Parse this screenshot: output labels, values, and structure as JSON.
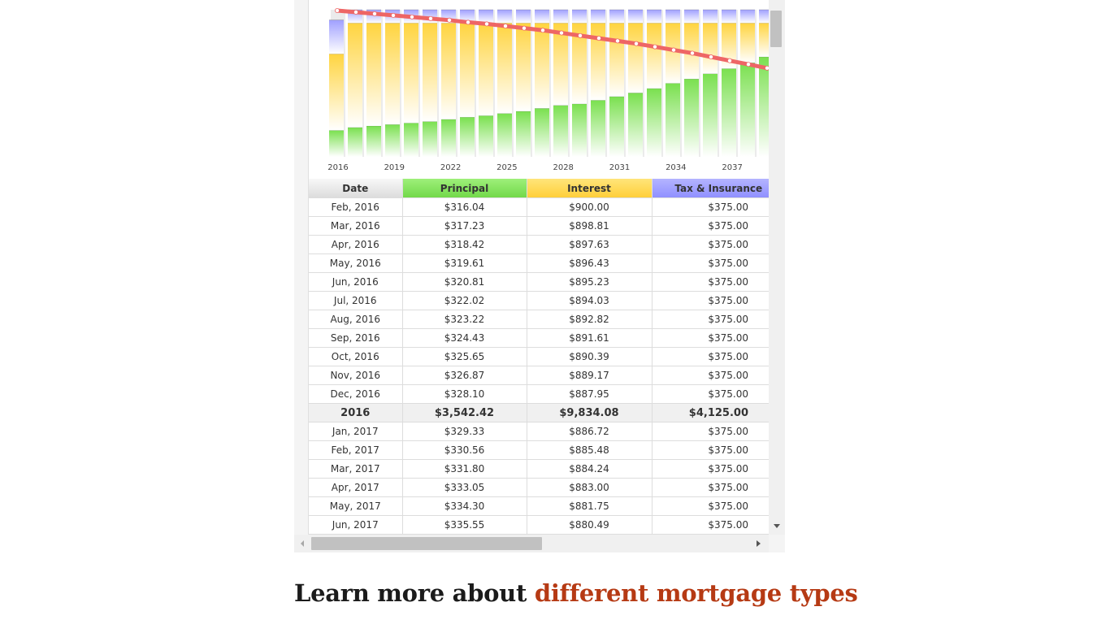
{
  "chart_data": {
    "type": "bar",
    "stacked": true,
    "x_tick_labels": [
      "2016",
      "2019",
      "2022",
      "2025",
      "2028",
      "2031",
      "2034",
      "2037"
    ],
    "series": [
      {
        "values": [
          0.18,
          0.2,
          0.21,
          0.22,
          0.23,
          0.24,
          0.255,
          0.27,
          0.28,
          0.295,
          0.31,
          0.33,
          0.35,
          0.36,
          0.385,
          0.41,
          0.435,
          0.465,
          0.5,
          0.53,
          0.565,
          0.6,
          0.64,
          0.68
        ]
      },
      {
        "values": [
          0.52,
          0.71,
          0.7,
          0.69,
          0.68,
          0.67,
          0.655,
          0.64,
          0.63,
          0.615,
          0.6,
          0.58,
          0.56,
          0.55,
          0.525,
          0.5,
          0.475,
          0.445,
          0.41,
          0.38,
          0.345,
          0.31,
          0.27,
          0.23
        ]
      },
      {
        "values": [
          0.23,
          0.24,
          0.24,
          0.24,
          0.24,
          0.24,
          0.24,
          0.24,
          0.24,
          0.24,
          0.24,
          0.24,
          0.24,
          0.24,
          0.24,
          0.24,
          0.24,
          0.24,
          0.24,
          0.24,
          0.24,
          0.24,
          0.24,
          0.24
        ]
      },
      {
        "type": "line",
        "values": [
          1.0,
          0.985,
          0.97,
          0.955,
          0.94,
          0.925,
          0.91,
          0.89,
          0.875,
          0.855,
          0.835,
          0.815,
          0.79,
          0.765,
          0.74,
          0.715,
          0.69,
          0.66,
          0.63,
          0.6,
          0.565,
          0.53,
          0.495,
          0.46
        ]
      }
    ],
    "colors": {
      "principal": "#7ae04f",
      "interest": "#ffd43f",
      "tax": "#a0a0ff",
      "balance": "#ee6666"
    },
    "legend": "none",
    "grid": false
  },
  "table": {
    "headers": {
      "date": "Date",
      "principal": "Principal",
      "interest": "Interest",
      "tax": "Tax & Insurance"
    },
    "rows": [
      {
        "date": "Feb, 2016",
        "principal": "$316.04",
        "interest": "$900.00",
        "tax": "$375.00"
      },
      {
        "date": "Mar, 2016",
        "principal": "$317.23",
        "interest": "$898.81",
        "tax": "$375.00"
      },
      {
        "date": "Apr, 2016",
        "principal": "$318.42",
        "interest": "$897.63",
        "tax": "$375.00"
      },
      {
        "date": "May, 2016",
        "principal": "$319.61",
        "interest": "$896.43",
        "tax": "$375.00"
      },
      {
        "date": "Jun, 2016",
        "principal": "$320.81",
        "interest": "$895.23",
        "tax": "$375.00"
      },
      {
        "date": "Jul, 2016",
        "principal": "$322.02",
        "interest": "$894.03",
        "tax": "$375.00"
      },
      {
        "date": "Aug, 2016",
        "principal": "$323.22",
        "interest": "$892.82",
        "tax": "$375.00"
      },
      {
        "date": "Sep, 2016",
        "principal": "$324.43",
        "interest": "$891.61",
        "tax": "$375.00"
      },
      {
        "date": "Oct, 2016",
        "principal": "$325.65",
        "interest": "$890.39",
        "tax": "$375.00"
      },
      {
        "date": "Nov, 2016",
        "principal": "$326.87",
        "interest": "$889.17",
        "tax": "$375.00"
      },
      {
        "date": "Dec, 2016",
        "principal": "$328.10",
        "interest": "$887.95",
        "tax": "$375.00"
      },
      {
        "date": "2016",
        "principal": "$3,542.42",
        "interest": "$9,834.08",
        "tax": "$4,125.00",
        "summary": true
      },
      {
        "date": "Jan, 2017",
        "principal": "$329.33",
        "interest": "$886.72",
        "tax": "$375.00"
      },
      {
        "date": "Feb, 2017",
        "principal": "$330.56",
        "interest": "$885.48",
        "tax": "$375.00"
      },
      {
        "date": "Mar, 2017",
        "principal": "$331.80",
        "interest": "$884.24",
        "tax": "$375.00"
      },
      {
        "date": "Apr, 2017",
        "principal": "$333.05",
        "interest": "$883.00",
        "tax": "$375.00"
      },
      {
        "date": "May, 2017",
        "principal": "$334.30",
        "interest": "$881.75",
        "tax": "$375.00"
      },
      {
        "date": "Jun, 2017",
        "principal": "$335.55",
        "interest": "$880.49",
        "tax": "$375.00"
      }
    ]
  },
  "heading": {
    "prefix": "Learn more about ",
    "link_text": "different mortgage types"
  },
  "colors": {
    "link": "#b63a14",
    "heading": "#1b1b1b"
  }
}
